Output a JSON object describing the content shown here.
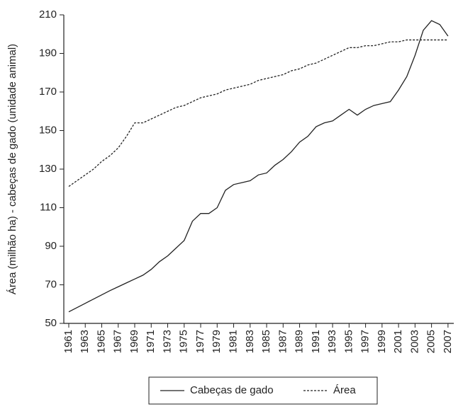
{
  "chart_data": {
    "type": "line",
    "y_label": "Área (milhão ha) - cabeças de gado (unidade animal)",
    "x": [
      1961,
      1962,
      1963,
      1964,
      1965,
      1966,
      1967,
      1968,
      1969,
      1970,
      1971,
      1972,
      1973,
      1974,
      1975,
      1976,
      1977,
      1978,
      1979,
      1980,
      1981,
      1982,
      1983,
      1984,
      1985,
      1986,
      1987,
      1988,
      1989,
      1990,
      1991,
      1992,
      1993,
      1994,
      1995,
      1996,
      1997,
      1998,
      1999,
      2000,
      2001,
      2002,
      2003,
      2004,
      2005,
      2006,
      2007
    ],
    "series": [
      {
        "name": "Cabeças de gado",
        "color": "#222222",
        "dash": "solid",
        "values": [
          56,
          58.2,
          60.4,
          62.6,
          64.8,
          67,
          69,
          71,
          73,
          75,
          78,
          82,
          85,
          89,
          93,
          103,
          107,
          107,
          110,
          119,
          122,
          123,
          124,
          127,
          128,
          132,
          135,
          139,
          144,
          147,
          152,
          154,
          155,
          158,
          161,
          158,
          161,
          163,
          164,
          165,
          171,
          178,
          189,
          202,
          207,
          205,
          199
        ]
      },
      {
        "name": "Área",
        "color": "#222222",
        "dash": "dotted",
        "values": [
          121,
          124,
          127,
          130,
          134,
          137,
          141,
          147,
          154,
          154,
          156,
          158,
          160,
          162,
          163,
          165,
          167,
          168,
          169,
          171,
          172,
          173,
          174,
          176,
          177,
          178,
          179,
          181,
          182,
          184,
          185,
          187,
          189,
          191,
          193,
          193,
          194,
          194,
          195,
          196,
          196,
          197,
          197,
          197,
          197,
          197,
          197
        ]
      }
    ],
    "xlim": [
      1960.4,
      2007.7
    ],
    "xticks": [
      1961,
      1963,
      1965,
      1967,
      1969,
      1971,
      1973,
      1975,
      1977,
      1979,
      1981,
      1983,
      1985,
      1987,
      1989,
      1991,
      1993,
      1995,
      1997,
      1999,
      2001,
      2003,
      2005,
      2007
    ],
    "ylim": [
      50,
      210
    ],
    "yticks": [
      50,
      70,
      90,
      110,
      130,
      150,
      170,
      190,
      210
    ],
    "grid": false,
    "legend": "bottom"
  }
}
